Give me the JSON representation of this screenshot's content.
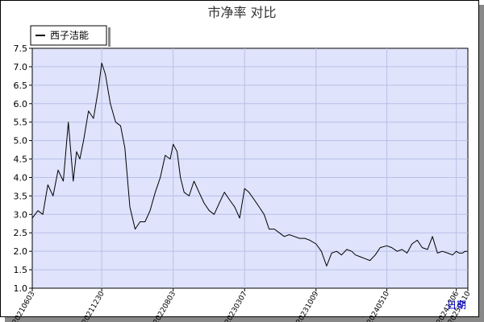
{
  "colors": {
    "plot_bg": "#dfe3fb",
    "grid": "#b8c0e8",
    "line": "#000000",
    "frame": "#000000",
    "xlabel": "#0000cc"
  },
  "chart_data": {
    "type": "line",
    "title": "市净率  对比",
    "xlabel": "日期",
    "ylabel": "",
    "legend": "top-left",
    "grid": true,
    "xlim": [
      "2021-06-03",
      "2025-01-10"
    ],
    "ylim": [
      1.0,
      7.5
    ],
    "yticks": [
      1.0,
      1.5,
      2.0,
      2.5,
      3.0,
      3.5,
      4.0,
      4.5,
      5.0,
      5.5,
      6.0,
      6.5,
      7.0,
      7.5
    ],
    "ytick_labels": [
      "1.0",
      "1.5",
      "2.0",
      "2.5",
      "3.0",
      "3.5",
      "4.0",
      "4.5",
      "5.0",
      "5.5",
      "6.0",
      "6.5",
      "7.0",
      "7.5"
    ],
    "xticks": [
      "2021-06-03",
      "2021-12-30",
      "2022-08-03",
      "2023-03-07",
      "2023-10-09",
      "2024-05-10",
      "2024-12-06",
      "2025-01-10"
    ],
    "xtick_labels": [
      "20210603",
      "20211230",
      "20220803",
      "20230307",
      "20231009",
      "20240510",
      "20241206",
      "20250110"
    ],
    "series": [
      {
        "name": "西子洁能",
        "x": [
          "2021-06-03",
          "2021-06-20",
          "2021-07-05",
          "2021-07-20",
          "2021-08-05",
          "2021-08-20",
          "2021-09-05",
          "2021-09-20",
          "2021-10-05",
          "2021-10-15",
          "2021-10-25",
          "2021-11-05",
          "2021-11-20",
          "2021-12-05",
          "2021-12-20",
          "2021-12-30",
          "2022-01-10",
          "2022-01-25",
          "2022-02-10",
          "2022-02-25",
          "2022-03-10",
          "2022-03-25",
          "2022-04-10",
          "2022-04-25",
          "2022-05-10",
          "2022-05-25",
          "2022-06-10",
          "2022-06-25",
          "2022-07-10",
          "2022-07-25",
          "2022-08-03",
          "2022-08-15",
          "2022-08-25",
          "2022-09-05",
          "2022-09-20",
          "2022-10-05",
          "2022-10-20",
          "2022-11-05",
          "2022-11-20",
          "2022-12-05",
          "2022-12-20",
          "2023-01-05",
          "2023-01-20",
          "2023-02-05",
          "2023-02-20",
          "2023-03-07",
          "2023-03-20",
          "2023-04-05",
          "2023-04-20",
          "2023-05-05",
          "2023-05-20",
          "2023-06-05",
          "2023-06-20",
          "2023-07-05",
          "2023-07-20",
          "2023-08-05",
          "2023-08-20",
          "2023-09-05",
          "2023-09-20",
          "2023-10-09",
          "2023-10-25",
          "2023-11-10",
          "2023-11-25",
          "2023-12-10",
          "2023-12-25",
          "2024-01-10",
          "2024-01-25",
          "2024-02-05",
          "2024-02-20",
          "2024-03-05",
          "2024-03-20",
          "2024-04-05",
          "2024-04-20",
          "2024-05-10",
          "2024-05-25",
          "2024-06-10",
          "2024-06-25",
          "2024-07-10",
          "2024-07-25",
          "2024-08-10",
          "2024-08-25",
          "2024-09-10",
          "2024-09-25",
          "2024-10-10",
          "2024-10-25",
          "2024-11-10",
          "2024-11-25",
          "2024-12-06",
          "2024-12-15",
          "2024-12-25",
          "2025-01-01",
          "2025-01-10"
        ],
        "values": [
          2.9,
          3.1,
          3.0,
          3.8,
          3.5,
          4.2,
          3.9,
          5.5,
          3.9,
          4.7,
          4.5,
          5.0,
          5.8,
          5.6,
          6.4,
          7.1,
          6.8,
          6.0,
          5.5,
          5.4,
          4.8,
          3.2,
          2.6,
          2.8,
          2.8,
          3.1,
          3.6,
          4.0,
          4.6,
          4.5,
          4.9,
          4.7,
          4.0,
          3.6,
          3.5,
          3.9,
          3.6,
          3.3,
          3.1,
          3.0,
          3.3,
          3.6,
          3.4,
          3.2,
          2.9,
          3.7,
          3.6,
          3.4,
          3.2,
          3.0,
          2.6,
          2.6,
          2.5,
          2.4,
          2.45,
          2.4,
          2.35,
          2.35,
          2.3,
          2.2,
          2.0,
          1.6,
          1.95,
          2.0,
          1.9,
          2.05,
          2.0,
          1.9,
          1.85,
          1.8,
          1.75,
          1.9,
          2.1,
          2.15,
          2.1,
          2.0,
          2.05,
          1.95,
          2.2,
          2.3,
          2.1,
          2.05,
          2.4,
          1.95,
          2.0,
          1.95,
          1.9,
          2.0,
          1.95,
          1.95,
          2.0,
          2.0
        ]
      }
    ]
  }
}
